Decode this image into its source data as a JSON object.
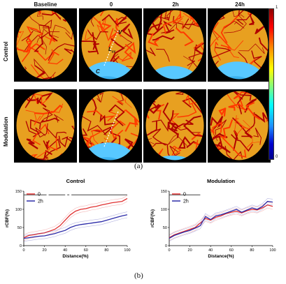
{
  "top": {
    "column_headers": [
      "Baseline",
      "0",
      "2h",
      "24h"
    ],
    "row_labels": [
      "Control",
      "Modulation"
    ],
    "colorbar": {
      "max_label": "1",
      "min_label": "0"
    },
    "annotations": {
      "v_label": "V",
      "lcc_label": "L",
      "lcc_sub": "cc",
      "c_label": "C"
    }
  },
  "caption_a": "(a)",
  "caption_b": "(b)",
  "chart_data": [
    {
      "type": "line",
      "title": "Control",
      "xlabel": "Distance(%)",
      "ylabel": "rCBF(%)",
      "xlim": [
        0,
        100
      ],
      "ylim": [
        0,
        150
      ],
      "xticks": [
        0,
        20,
        40,
        60,
        80,
        100
      ],
      "yticks": [
        0,
        50,
        100,
        150
      ],
      "legend": "top-left",
      "significance_bars": [
        [
          0,
          22
        ],
        [
          24,
          40
        ],
        [
          42,
          44
        ],
        [
          46,
          100
        ]
      ],
      "series": [
        {
          "name": "0",
          "color": "#e03030",
          "x": [
            0,
            5,
            10,
            15,
            20,
            25,
            30,
            35,
            40,
            45,
            50,
            55,
            60,
            65,
            70,
            75,
            80,
            85,
            90,
            95,
            100
          ],
          "values": [
            22,
            28,
            30,
            33,
            35,
            40,
            45,
            55,
            70,
            85,
            95,
            100,
            102,
            106,
            108,
            112,
            115,
            118,
            120,
            122,
            130
          ]
        },
        {
          "name": "2h",
          "color": "#2a2aa8",
          "x": [
            0,
            5,
            10,
            15,
            20,
            25,
            30,
            35,
            40,
            45,
            50,
            55,
            60,
            65,
            70,
            75,
            80,
            85,
            90,
            95,
            100
          ],
          "values": [
            20,
            22,
            24,
            26,
            27,
            30,
            33,
            38,
            42,
            50,
            55,
            58,
            60,
            62,
            64,
            66,
            70,
            74,
            78,
            82,
            85
          ]
        }
      ]
    },
    {
      "type": "line",
      "title": "Modulation",
      "xlabel": "Distance(%)",
      "ylabel": "rCBF(%)",
      "xlim": [
        0,
        100
      ],
      "ylim": [
        0,
        150
      ],
      "xticks": [
        0,
        20,
        40,
        60,
        80,
        100
      ],
      "yticks": [
        0,
        50,
        100,
        150
      ],
      "legend": "top-left",
      "significance_bars": [
        [
          0,
          30
        ]
      ],
      "series": [
        {
          "name": "0",
          "color": "#e03030",
          "x": [
            0,
            5,
            10,
            15,
            20,
            25,
            30,
            35,
            40,
            45,
            50,
            55,
            60,
            65,
            70,
            75,
            80,
            85,
            90,
            95,
            100
          ],
          "values": [
            22,
            30,
            35,
            40,
            45,
            50,
            62,
            75,
            70,
            78,
            82,
            88,
            92,
            95,
            90,
            96,
            100,
            98,
            104,
            112,
            108
          ]
        },
        {
          "name": "2h",
          "color": "#2a2aa8",
          "x": [
            0,
            5,
            10,
            15,
            20,
            25,
            30,
            35,
            40,
            45,
            50,
            55,
            60,
            65,
            70,
            75,
            80,
            85,
            90,
            95,
            100
          ],
          "values": [
            20,
            28,
            33,
            38,
            42,
            48,
            55,
            80,
            72,
            82,
            85,
            90,
            95,
            100,
            92,
            98,
            104,
            100,
            108,
            122,
            120
          ]
        }
      ]
    }
  ]
}
